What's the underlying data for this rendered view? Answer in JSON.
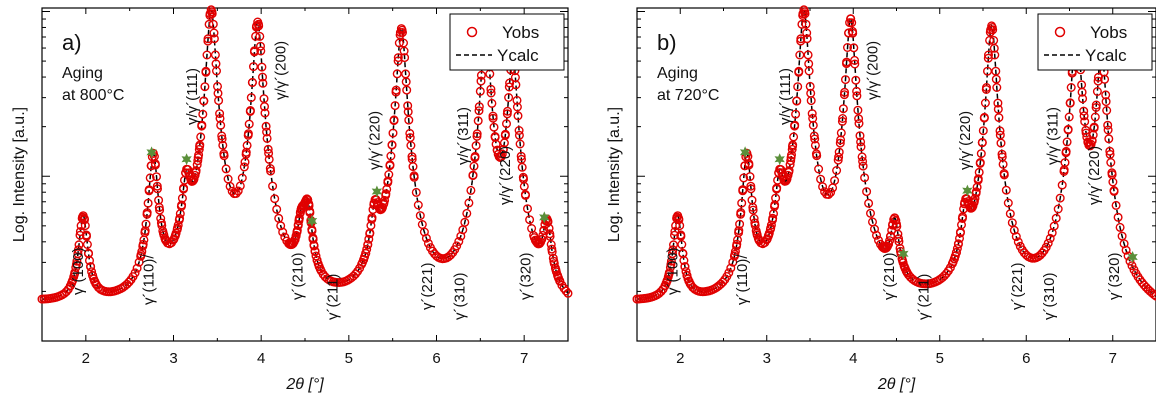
{
  "chart_data": [
    {
      "type": "line",
      "panel_label": "a)",
      "annotation": [
        "Aging",
        "at 800°C"
      ],
      "xlabel": "2θ [°]",
      "ylabel": "Log. Intensity [a.u.]",
      "xlim": [
        1.5,
        7.5
      ],
      "x_ticks": [
        "2",
        "3",
        "4",
        "5",
        "6",
        "7"
      ],
      "y_scale": "log",
      "legend": {
        "position": "top-right",
        "entries": [
          "Yobs",
          "Ycalc"
        ]
      },
      "series": [
        {
          "name": "Yobs",
          "style": "open-circle-markers",
          "color": "#e00000"
        },
        {
          "name": "Ycalc",
          "style": "dashed-line",
          "color": "#000000"
        }
      ],
      "peaks": [
        {
          "x": 1.97,
          "h": 0.04
        },
        {
          "x": 2.77,
          "h": 0.115
        },
        {
          "x": 3.15,
          "h": 0.06
        },
        {
          "x": 3.43,
          "h": 1.0
        },
        {
          "x": 3.96,
          "h": 0.84
        },
        {
          "x": 4.46,
          "h": 0.025
        },
        {
          "x": 4.53,
          "h": 0.04
        },
        {
          "x": 5.3,
          "h": 0.035
        },
        {
          "x": 5.6,
          "h": 0.77
        },
        {
          "x": 6.56,
          "h": 0.74
        },
        {
          "x": 6.87,
          "h": 0.5
        },
        {
          "x": 7.26,
          "h": 0.03
        }
      ],
      "peak_labels": [
        {
          "text": "γ´(100)",
          "x": 1.97
        },
        {
          "text": "γ´(110)/",
          "x": 2.77
        },
        {
          "text": "γ/γ´(111)",
          "x": 3.27
        },
        {
          "text": "γ/γ´(200)",
          "x": 4.28
        },
        {
          "text": "γ´(210)",
          "x": 4.47
        },
        {
          "text": "γ´(211)",
          "x": 4.87
        },
        {
          "text": "γ/γ´(220)",
          "x": 5.35
        },
        {
          "text": "γ´(221)",
          "x": 5.95
        },
        {
          "text": "γ´(310)",
          "x": 6.32
        },
        {
          "text": "γ/γ´(311)",
          "x": 6.36
        },
        {
          "text": "γ/γ´(220)",
          "x": 6.84
        },
        {
          "text": "γ´(320)",
          "x": 7.07
        }
      ],
      "star_markers": [
        2.75,
        3.15,
        4.58,
        5.32,
        7.23
      ]
    },
    {
      "type": "line",
      "panel_label": "b)",
      "annotation": [
        "Aging",
        "at 720°C"
      ],
      "xlabel": "2θ [°]",
      "ylabel": "Log. Intensity [a.u.]",
      "xlim": [
        1.5,
        7.5
      ],
      "x_ticks": [
        "2",
        "3",
        "4",
        "5",
        "6",
        "7"
      ],
      "y_scale": "log",
      "legend": {
        "position": "top-right",
        "entries": [
          "Yobs",
          "Ycalc"
        ]
      },
      "series": [
        {
          "name": "Yobs",
          "style": "open-circle-markers",
          "color": "#e00000"
        },
        {
          "name": "Ycalc",
          "style": "dashed-line",
          "color": "#000000"
        }
      ],
      "peaks": [
        {
          "x": 1.97,
          "h": 0.04
        },
        {
          "x": 2.77,
          "h": 0.115
        },
        {
          "x": 3.15,
          "h": 0.06
        },
        {
          "x": 3.43,
          "h": 1.0
        },
        {
          "x": 3.97,
          "h": 0.88
        },
        {
          "x": 4.48,
          "h": 0.03
        },
        {
          "x": 5.3,
          "h": 0.035
        },
        {
          "x": 5.6,
          "h": 0.8
        },
        {
          "x": 6.58,
          "h": 0.78
        },
        {
          "x": 6.87,
          "h": 0.54
        }
      ],
      "peak_labels": [
        {
          "text": "γ´(100)",
          "x": 1.97
        },
        {
          "text": "γ´(110)/",
          "x": 2.77
        },
        {
          "text": "γ/γ´(111)",
          "x": 3.27
        },
        {
          "text": "γ/γ´(200)",
          "x": 4.28
        },
        {
          "text": "γ´(210)",
          "x": 4.47
        },
        {
          "text": "γ´(211)",
          "x": 4.87
        },
        {
          "text": "γ/γ´(220)",
          "x": 5.35
        },
        {
          "text": "γ´(221)",
          "x": 5.95
        },
        {
          "text": "γ´(310)",
          "x": 6.32
        },
        {
          "text": "γ/γ´(311)",
          "x": 6.36
        },
        {
          "text": "γ/γ´(220)",
          "x": 6.84
        },
        {
          "text": "γ´(320)",
          "x": 7.07
        }
      ],
      "star_markers": [
        2.75,
        3.15,
        4.58,
        5.32,
        7.23
      ]
    }
  ],
  "colors": {
    "observed": "#e00000",
    "calculated": "#000000",
    "star": "#5a8f3a",
    "axis": "#000000"
  }
}
